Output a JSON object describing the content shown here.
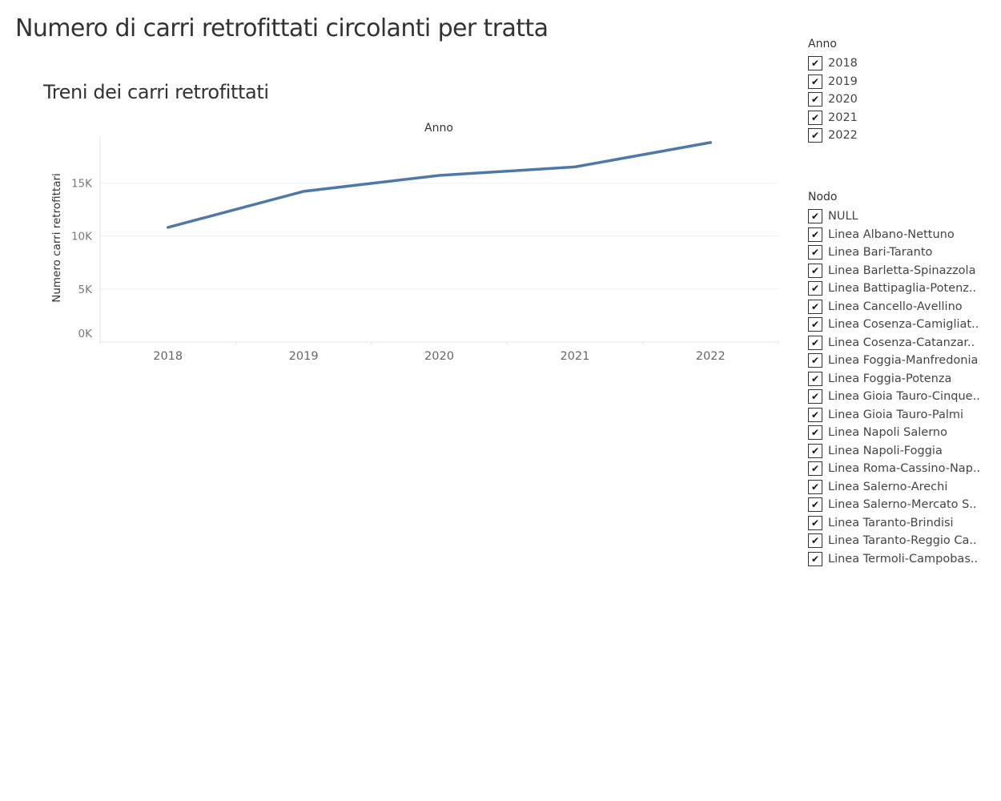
{
  "dashboard": {
    "title": "Numero di carri retrofittati circolanti per tratta"
  },
  "sheet": {
    "title": "Treni dei carri retrofittati"
  },
  "chart_data": {
    "type": "line",
    "column_header": "Anno",
    "ylabel": "Numero carri retrofittari",
    "x": [
      "2018",
      "2019",
      "2020",
      "2021",
      "2022"
    ],
    "series": [
      {
        "values": [
          10800,
          14200,
          15700,
          16500,
          18800
        ]
      }
    ],
    "ylim": [
      0,
      19400
    ],
    "yticks": [
      {
        "value": 0,
        "label": "0K"
      },
      {
        "value": 5000,
        "label": "5K"
      },
      {
        "value": 10000,
        "label": "10K"
      },
      {
        "value": 15000,
        "label": "15K"
      }
    ],
    "grid": true,
    "line_color": "#4e79a7"
  },
  "filters": {
    "anno": {
      "title": "Anno",
      "items": [
        {
          "label": "2018",
          "checked": true
        },
        {
          "label": "2019",
          "checked": true
        },
        {
          "label": "2020",
          "checked": true
        },
        {
          "label": "2021",
          "checked": true
        },
        {
          "label": "2022",
          "checked": true
        }
      ]
    },
    "nodo": {
      "title": "Nodo",
      "items": [
        {
          "label": "NULL",
          "checked": true
        },
        {
          "label": "Linea Albano-Nettuno",
          "checked": true
        },
        {
          "label": "Linea Bari-Taranto",
          "checked": true
        },
        {
          "label": "Linea Barletta-Spinazzola",
          "checked": true
        },
        {
          "label": "Linea Battipaglia-Potenz..",
          "checked": true
        },
        {
          "label": "Linea Cancello-Avellino",
          "checked": true
        },
        {
          "label": "Linea Cosenza-Camigliat..",
          "checked": true
        },
        {
          "label": "Linea Cosenza-Catanzar..",
          "checked": true
        },
        {
          "label": "Linea Foggia-Manfredonia",
          "checked": true
        },
        {
          "label": "Linea Foggia-Potenza",
          "checked": true
        },
        {
          "label": "Linea Gioia Tauro-Cinque..",
          "checked": true
        },
        {
          "label": "Linea Gioia Tauro-Palmi",
          "checked": true
        },
        {
          "label": "Linea Napoli Salerno",
          "checked": true
        },
        {
          "label": "Linea Napoli-Foggia",
          "checked": true
        },
        {
          "label": "Linea Roma-Cassino-Nap..",
          "checked": true
        },
        {
          "label": "Linea Salerno-Arechi",
          "checked": true
        },
        {
          "label": "Linea Salerno-Mercato S..",
          "checked": true
        },
        {
          "label": "Linea Taranto-Brindisi",
          "checked": true
        },
        {
          "label": "Linea Taranto-Reggio Ca..",
          "checked": true
        },
        {
          "label": "Linea Termoli-Campobas..",
          "checked": true
        }
      ]
    },
    "check_glyph": "✔"
  }
}
